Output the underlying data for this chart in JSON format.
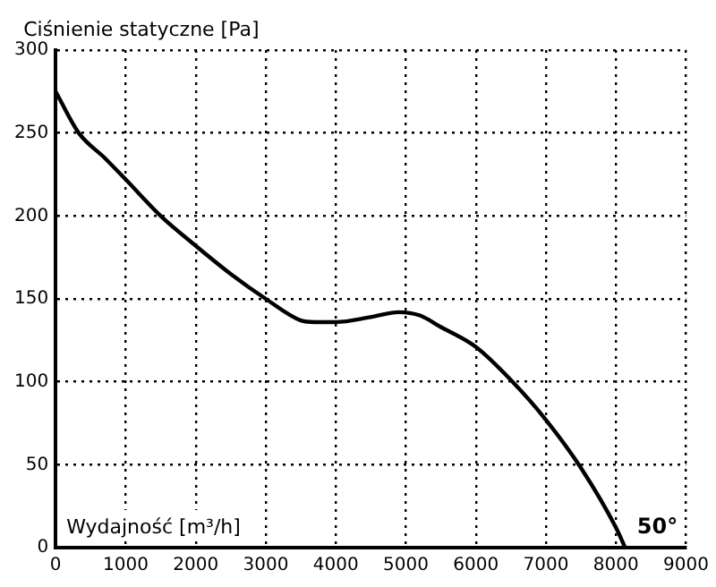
{
  "chart_data": {
    "type": "line",
    "ylabel": "Ciśnienie statyczne [Pa]",
    "xlabel": "Wydajność [m³/h]",
    "x": [
      0,
      330,
      700,
      1000,
      1500,
      2000,
      2500,
      3000,
      3500,
      3700,
      4000,
      4500,
      4900,
      5200,
      5500,
      6000,
      6500,
      7000,
      7500,
      8000,
      8130
    ],
    "series": [
      {
        "color": "#000000",
        "values": [
          275,
          250,
          235,
          222,
          200,
          182,
          165,
          150,
          137,
          136,
          136,
          139,
          142,
          140,
          133,
          121,
          101,
          77,
          48,
          12,
          0
        ]
      }
    ],
    "xlim": [
      0,
      9000
    ],
    "xticks": [
      0,
      1000,
      2000,
      3000,
      4000,
      5000,
      6000,
      7000,
      8000,
      9000
    ],
    "ylim": [
      0,
      300
    ],
    "yticks": [
      0,
      50,
      100,
      150,
      200,
      250,
      300
    ],
    "grid": true,
    "legend": false,
    "marker": "none",
    "line_style": "solid",
    "annotations": [
      "50°"
    ]
  }
}
